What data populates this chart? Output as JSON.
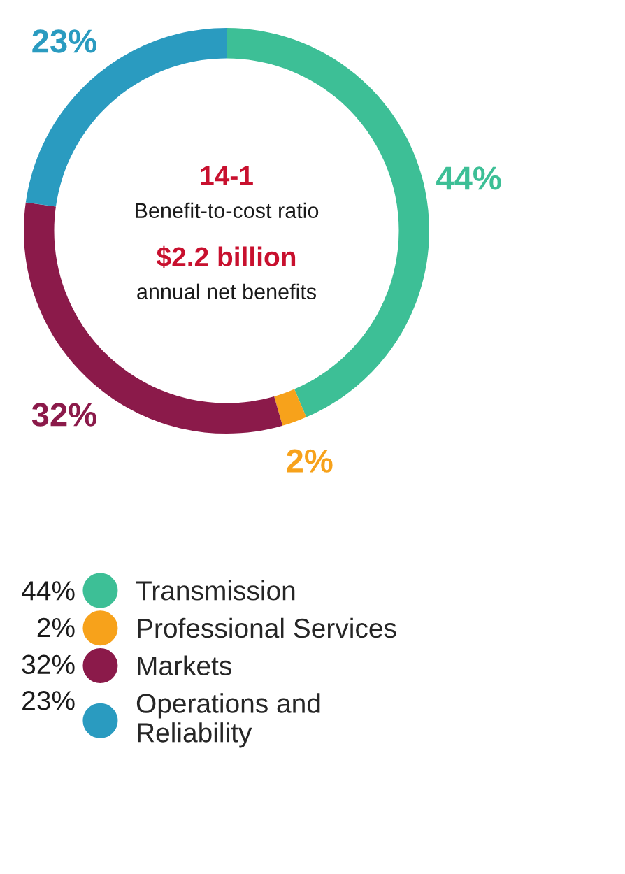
{
  "chart_data": {
    "type": "donut",
    "categories": [
      "Transmission",
      "Professional Services",
      "Markets",
      "Operations and Reliability"
    ],
    "values": [
      44,
      2,
      32,
      23
    ],
    "colors": [
      "#3dbf96",
      "#f7a21b",
      "#8b1a4a",
      "#2a9bc0"
    ],
    "value_labels": [
      "44%",
      "2%",
      "32%",
      "23%"
    ],
    "legend": "bottom",
    "annotations": [
      "14-1",
      "Benefit-to-cost ratio",
      "$2.2 billion",
      "annual net benefits"
    ]
  }
}
